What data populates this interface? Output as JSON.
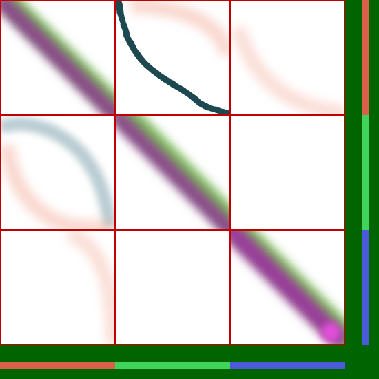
{
  "background_color": "#006400",
  "grid": {
    "rows": 3,
    "cols": 3,
    "line_color": "#c00000",
    "cell_background": "#ffffff"
  },
  "segment_colors": [
    "#d9604a",
    "#3fd45a",
    "#4a5ad9"
  ],
  "cells": [
    {
      "row": 0,
      "col": 0,
      "mark": "blurred-diagonal-band",
      "colors": [
        "#8a4a8a",
        "#7ab85a"
      ]
    },
    {
      "row": 0,
      "col": 1,
      "mark": "sharp-curve",
      "colors": [
        "#1e4a50"
      ]
    },
    {
      "row": 0,
      "col": 2,
      "mark": "blurred-curve",
      "colors": [
        "#f5b8a8"
      ]
    },
    {
      "row": 1,
      "col": 0,
      "mark": "blurred-curve-pair",
      "colors": [
        "#a8c0c8",
        "#f5b8a8"
      ]
    },
    {
      "row": 1,
      "col": 1,
      "mark": "blurred-diagonal-band",
      "colors": [
        "#8a4a8a",
        "#7ab85a"
      ]
    },
    {
      "row": 1,
      "col": 2,
      "mark": "empty",
      "colors": []
    },
    {
      "row": 2,
      "col": 0,
      "mark": "blurred-curve",
      "colors": [
        "#f5b8a8"
      ]
    },
    {
      "row": 2,
      "col": 1,
      "mark": "empty",
      "colors": []
    },
    {
      "row": 2,
      "col": 2,
      "mark": "blurred-diagonal-band",
      "colors": [
        "#9a3a9a",
        "#7ab85a",
        "#e050d8"
      ]
    }
  ]
}
